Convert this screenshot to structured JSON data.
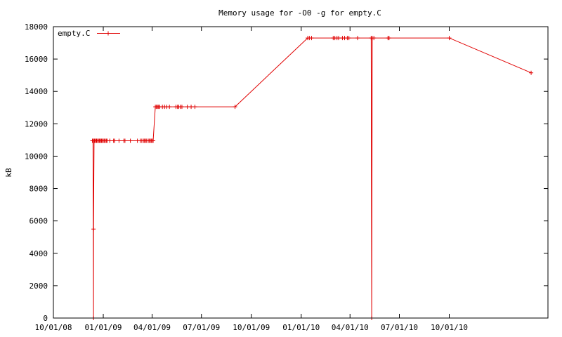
{
  "chart_data": {
    "type": "line",
    "title": "Memory usage for -O0 -g for empty.C",
    "xlabel": "",
    "ylabel": "kB",
    "xlim": [
      "2008-10-01",
      "2011-04-01"
    ],
    "ylim": [
      0,
      18000
    ],
    "yticks": [
      0,
      2000,
      4000,
      6000,
      8000,
      10000,
      12000,
      14000,
      16000,
      18000
    ],
    "xticks": [
      {
        "date": "2008-10-01",
        "label": "10/01/08"
      },
      {
        "date": "2009-01-01",
        "label": "01/01/09"
      },
      {
        "date": "2009-04-01",
        "label": "04/01/09"
      },
      {
        "date": "2009-07-01",
        "label": "07/01/09"
      },
      {
        "date": "2009-10-01",
        "label": "10/01/09"
      },
      {
        "date": "2010-01-01",
        "label": "01/01/10"
      },
      {
        "date": "2010-04-01",
        "label": "04/01/10"
      },
      {
        "date": "2010-07-01",
        "label": "07/01/10"
      },
      {
        "date": "2010-10-01",
        "label": "10/01/10"
      }
    ],
    "grid": false,
    "legend_position": "top-left",
    "series": [
      {
        "name": "empty.C",
        "color": "#e00000",
        "marker": "plus",
        "points": [
          [
            "2008-12-12",
            10950
          ],
          [
            "2008-12-13",
            10950
          ],
          [
            "2008-12-14",
            0
          ],
          [
            "2008-12-14",
            5500
          ],
          [
            "2008-12-15",
            10950
          ],
          [
            "2008-12-16",
            10950
          ],
          [
            "2008-12-18",
            10950
          ],
          [
            "2008-12-19",
            10950
          ],
          [
            "2008-12-20",
            10950
          ],
          [
            "2008-12-22",
            10950
          ],
          [
            "2008-12-23",
            10950
          ],
          [
            "2008-12-25",
            10950
          ],
          [
            "2008-12-26",
            10950
          ],
          [
            "2008-12-28",
            10950
          ],
          [
            "2008-12-29",
            10950
          ],
          [
            "2008-12-31",
            10950
          ],
          [
            "2009-01-01",
            10950
          ],
          [
            "2009-01-03",
            10950
          ],
          [
            "2009-01-05",
            10950
          ],
          [
            "2009-01-07",
            10950
          ],
          [
            "2009-01-08",
            10950
          ],
          [
            "2009-01-13",
            10950
          ],
          [
            "2009-01-20",
            10950
          ],
          [
            "2009-01-22",
            10950
          ],
          [
            "2009-01-30",
            10950
          ],
          [
            "2009-02-08",
            10950
          ],
          [
            "2009-02-10",
            10950
          ],
          [
            "2009-02-20",
            10950
          ],
          [
            "2009-03-05",
            10950
          ],
          [
            "2009-03-10",
            10950
          ],
          [
            "2009-03-13",
            10950
          ],
          [
            "2009-03-16",
            10950
          ],
          [
            "2009-03-18",
            10950
          ],
          [
            "2009-03-20",
            10950
          ],
          [
            "2009-03-22",
            10950
          ],
          [
            "2009-03-25",
            10950
          ],
          [
            "2009-03-27",
            10950
          ],
          [
            "2009-03-29",
            10950
          ],
          [
            "2009-03-31",
            10950
          ],
          [
            "2009-04-01",
            10950
          ],
          [
            "2009-04-03",
            10950
          ],
          [
            "2009-04-07",
            13050
          ],
          [
            "2009-04-09",
            13050
          ],
          [
            "2009-04-11",
            13050
          ],
          [
            "2009-04-13",
            13050
          ],
          [
            "2009-04-15",
            13050
          ],
          [
            "2009-04-20",
            13050
          ],
          [
            "2009-04-24",
            13050
          ],
          [
            "2009-04-28",
            13050
          ],
          [
            "2009-05-03",
            13050
          ],
          [
            "2009-05-15",
            13050
          ],
          [
            "2009-05-18",
            13050
          ],
          [
            "2009-05-20",
            13050
          ],
          [
            "2009-05-23",
            13050
          ],
          [
            "2009-05-26",
            13050
          ],
          [
            "2009-06-05",
            13050
          ],
          [
            "2009-06-12",
            13050
          ],
          [
            "2009-06-19",
            13050
          ],
          [
            "2009-09-01",
            13050
          ],
          [
            "2010-01-13",
            17300
          ],
          [
            "2010-01-16",
            17300
          ],
          [
            "2010-01-20",
            17300
          ],
          [
            "2010-03-01",
            17300
          ],
          [
            "2010-03-04",
            17300
          ],
          [
            "2010-03-08",
            17300
          ],
          [
            "2010-03-11",
            17300
          ],
          [
            "2010-03-18",
            17300
          ],
          [
            "2010-03-22",
            17300
          ],
          [
            "2010-03-27",
            17300
          ],
          [
            "2010-03-30",
            17300
          ],
          [
            "2010-04-15",
            17300
          ],
          [
            "2010-05-10",
            17300
          ],
          [
            "2010-05-11",
            0
          ],
          [
            "2010-05-12",
            17300
          ],
          [
            "2010-05-15",
            17300
          ],
          [
            "2010-06-10",
            17300
          ],
          [
            "2010-06-12",
            17300
          ],
          [
            "2010-10-01",
            17300
          ],
          [
            "2011-03-01",
            15150
          ]
        ]
      }
    ]
  }
}
